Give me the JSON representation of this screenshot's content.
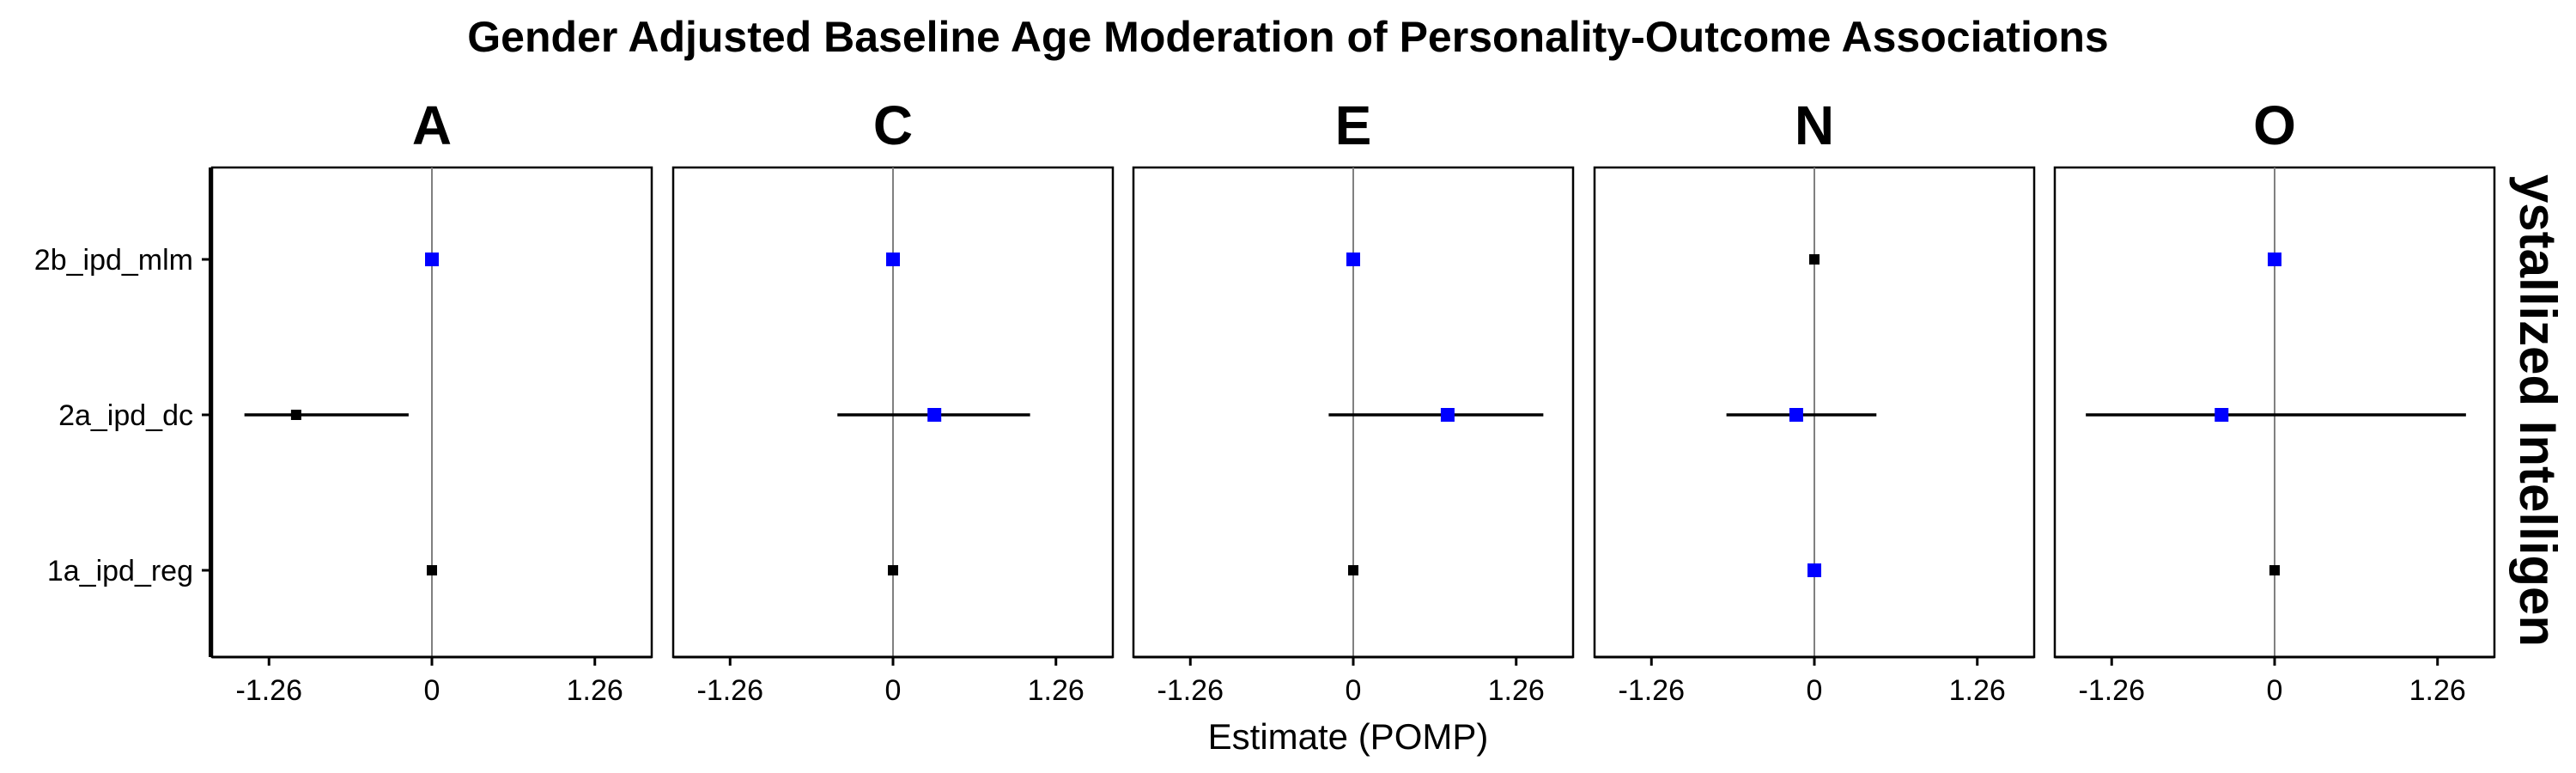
{
  "chart_data": {
    "type": "scatter",
    "subtype": "forest-plot",
    "title": "Gender Adjusted Baseline Age Moderation of Personality-Outcome Associations",
    "xlabel": "Estimate (POMP)",
    "ylabel": "",
    "strip_label": "ystallized Intelligen",
    "xlim": [
      -1.7,
      1.7
    ],
    "x_ticks": [
      -1.26,
      0,
      1.26
    ],
    "x_tick_labels": [
      "-1.26",
      "0",
      "1.26"
    ],
    "y_categories": [
      "2b_ipd_mlm",
      "2a_ipd_dc",
      "1a_ipd_reg"
    ],
    "grid": false,
    "reference_line": 0,
    "colors": {
      "significant": "#0000ff",
      "nonsignificant": "#000000"
    },
    "panels": [
      {
        "name": "A",
        "points": [
          {
            "category": "2b_ipd_mlm",
            "estimate": 0.0,
            "lower": 0.0,
            "upper": 0.0,
            "significant": true
          },
          {
            "category": "2a_ipd_dc",
            "estimate": -1.05,
            "lower": -1.45,
            "upper": -0.18,
            "significant": false
          },
          {
            "category": "1a_ipd_reg",
            "estimate": 0.0,
            "lower": 0.0,
            "upper": 0.0,
            "significant": false
          }
        ]
      },
      {
        "name": "C",
        "points": [
          {
            "category": "2b_ipd_mlm",
            "estimate": 0.0,
            "lower": 0.0,
            "upper": 0.0,
            "significant": true
          },
          {
            "category": "2a_ipd_dc",
            "estimate": 0.32,
            "lower": -0.43,
            "upper": 1.06,
            "significant": true
          },
          {
            "category": "1a_ipd_reg",
            "estimate": 0.0,
            "lower": 0.0,
            "upper": 0.0,
            "significant": false
          }
        ]
      },
      {
        "name": "E",
        "points": [
          {
            "category": "2b_ipd_mlm",
            "estimate": 0.0,
            "lower": 0.0,
            "upper": 0.0,
            "significant": true
          },
          {
            "category": "2a_ipd_dc",
            "estimate": 0.73,
            "lower": -0.19,
            "upper": 1.47,
            "significant": true
          },
          {
            "category": "1a_ipd_reg",
            "estimate": 0.0,
            "lower": 0.0,
            "upper": 0.0,
            "significant": false
          }
        ]
      },
      {
        "name": "N",
        "points": [
          {
            "category": "2b_ipd_mlm",
            "estimate": 0.0,
            "lower": 0.0,
            "upper": 0.0,
            "significant": false
          },
          {
            "category": "2a_ipd_dc",
            "estimate": -0.14,
            "lower": -0.68,
            "upper": 0.48,
            "significant": true
          },
          {
            "category": "1a_ipd_reg",
            "estimate": 0.0,
            "lower": 0.0,
            "upper": 0.0,
            "significant": true
          }
        ]
      },
      {
        "name": "O",
        "points": [
          {
            "category": "2b_ipd_mlm",
            "estimate": 0.0,
            "lower": 0.0,
            "upper": 0.0,
            "significant": true
          },
          {
            "category": "2a_ipd_dc",
            "estimate": -0.41,
            "lower": -1.46,
            "upper": 1.48,
            "significant": true
          },
          {
            "category": "1a_ipd_reg",
            "estimate": 0.0,
            "lower": 0.0,
            "upper": 0.0,
            "significant": false
          }
        ]
      }
    ]
  }
}
